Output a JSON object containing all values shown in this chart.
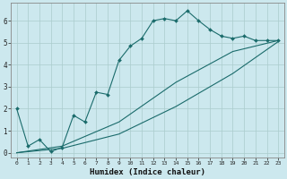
{
  "xlabel": "Humidex (Indice chaleur)",
  "bg_color": "#cce8ee",
  "grid_color": "#aacccc",
  "line_color": "#1a6b6b",
  "xlim": [
    -0.5,
    23.5
  ],
  "ylim": [
    -0.2,
    6.8
  ],
  "xticks": [
    0,
    1,
    2,
    3,
    4,
    5,
    6,
    7,
    8,
    9,
    10,
    11,
    12,
    13,
    14,
    15,
    16,
    17,
    18,
    19,
    20,
    21,
    22,
    23
  ],
  "yticks": [
    0,
    1,
    2,
    3,
    4,
    5,
    6
  ],
  "line1_x": [
    0,
    1,
    2,
    3,
    4,
    5,
    6,
    7,
    8,
    9,
    10,
    11,
    12,
    13,
    14,
    15,
    16,
    17,
    18,
    19,
    20,
    21,
    22,
    23
  ],
  "line1_y": [
    2.0,
    0.3,
    0.6,
    0.05,
    0.25,
    1.7,
    1.4,
    2.75,
    2.65,
    4.2,
    4.85,
    5.2,
    6.0,
    6.1,
    6.0,
    6.45,
    6.0,
    5.6,
    5.3,
    5.2,
    5.3,
    5.1,
    5.1,
    5.1
  ],
  "line2_x": [
    0,
    4,
    9,
    14,
    19,
    23
  ],
  "line2_y": [
    0.0,
    0.3,
    1.4,
    3.2,
    4.6,
    5.1
  ],
  "line3_x": [
    0,
    4,
    9,
    14,
    19,
    23
  ],
  "line3_y": [
    0.0,
    0.2,
    0.85,
    2.1,
    3.6,
    5.05
  ]
}
